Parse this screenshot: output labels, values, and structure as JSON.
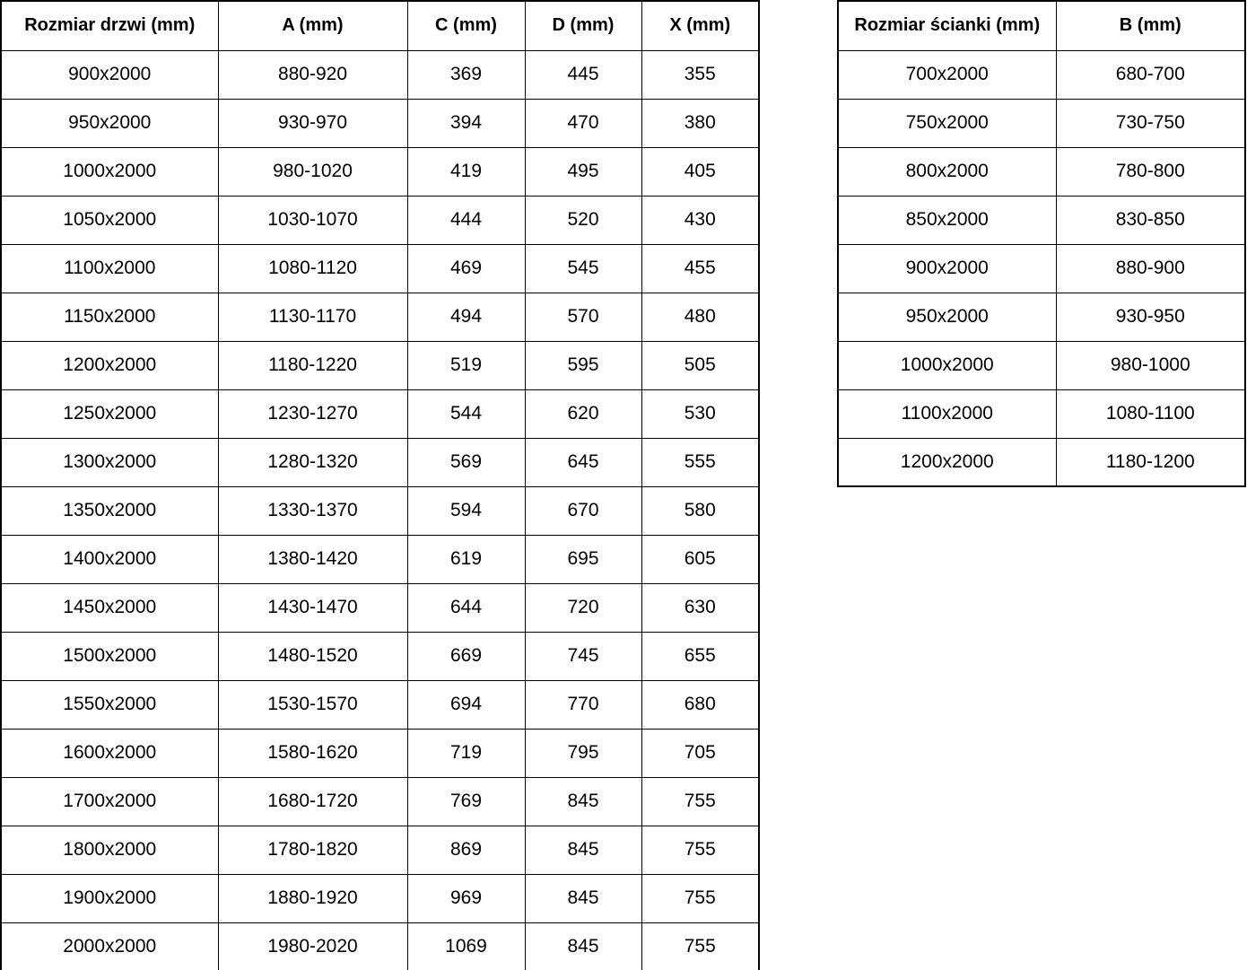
{
  "colors": {
    "background": "#ffffff",
    "border": "#000000",
    "text": "#000000"
  },
  "chart_data": [
    {
      "type": "table",
      "name": "door-dimensions",
      "columns": [
        "Rozmiar drzwi (mm)",
        "A (mm)",
        "C (mm)",
        "D (mm)",
        "X (mm)"
      ],
      "rows": [
        [
          "900x2000",
          "880-920",
          "369",
          "445",
          "355"
        ],
        [
          "950x2000",
          "930-970",
          "394",
          "470",
          "380"
        ],
        [
          "1000x2000",
          "980-1020",
          "419",
          "495",
          "405"
        ],
        [
          "1050x2000",
          "1030-1070",
          "444",
          "520",
          "430"
        ],
        [
          "1100x2000",
          "1080-1120",
          "469",
          "545",
          "455"
        ],
        [
          "1150x2000",
          "1130-1170",
          "494",
          "570",
          "480"
        ],
        [
          "1200x2000",
          "1180-1220",
          "519",
          "595",
          "505"
        ],
        [
          "1250x2000",
          "1230-1270",
          "544",
          "620",
          "530"
        ],
        [
          "1300x2000",
          "1280-1320",
          "569",
          "645",
          "555"
        ],
        [
          "1350x2000",
          "1330-1370",
          "594",
          "670",
          "580"
        ],
        [
          "1400x2000",
          "1380-1420",
          "619",
          "695",
          "605"
        ],
        [
          "1450x2000",
          "1430-1470",
          "644",
          "720",
          "630"
        ],
        [
          "1500x2000",
          "1480-1520",
          "669",
          "745",
          "655"
        ],
        [
          "1550x2000",
          "1530-1570",
          "694",
          "770",
          "680"
        ],
        [
          "1600x2000",
          "1580-1620",
          "719",
          "795",
          "705"
        ],
        [
          "1700x2000",
          "1680-1720",
          "769",
          "845",
          "755"
        ],
        [
          "1800x2000",
          "1780-1820",
          "869",
          "845",
          "755"
        ],
        [
          "1900x2000",
          "1880-1920",
          "969",
          "845",
          "755"
        ],
        [
          "2000x2000",
          "1980-2020",
          "1069",
          "845",
          "755"
        ]
      ]
    },
    {
      "type": "table",
      "name": "wall-panel-dimensions",
      "columns": [
        "Rozmiar ścianki (mm)",
        "B (mm)"
      ],
      "rows": [
        [
          "700x2000",
          "680-700"
        ],
        [
          "750x2000",
          "730-750"
        ],
        [
          "800x2000",
          "780-800"
        ],
        [
          "850x2000",
          "830-850"
        ],
        [
          "900x2000",
          "880-900"
        ],
        [
          "950x2000",
          "930-950"
        ],
        [
          "1000x2000",
          "980-1000"
        ],
        [
          "1100x2000",
          "1080-1100"
        ],
        [
          "1200x2000",
          "1180-1200"
        ]
      ]
    }
  ]
}
